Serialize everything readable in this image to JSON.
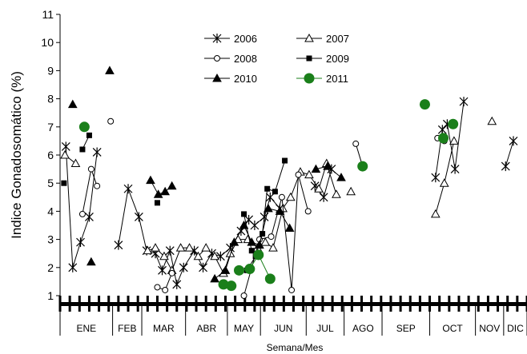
{
  "chart_data": {
    "type": "line",
    "xlabel": "Semana/Mes",
    "ylabel": "Indice Gonadosomático (%)",
    "ylim": [
      1,
      11
    ],
    "yticks": [
      1,
      2,
      3,
      4,
      5,
      6,
      7,
      8,
      9,
      10,
      11
    ],
    "x_range": [
      0,
      48
    ],
    "months": [
      "ENE",
      "FEB",
      "MAR",
      "ABR",
      "MAY",
      "JUN",
      "JUL",
      "AGO",
      "SEP",
      "OCT",
      "NOV",
      "DIC"
    ],
    "month_boundaries": [
      0,
      5.4,
      8.4,
      12.9,
      17.2,
      20.6,
      25.3,
      29.2,
      33.1,
      38.0,
      42.7,
      45.6,
      48
    ],
    "legend_position": "top-center",
    "grid": false,
    "series": [
      {
        "name": "2006",
        "marker": "star",
        "color": "#000000",
        "segments": [
          [
            [
              0.6,
              6.3
            ],
            [
              1.3,
              2.0
            ],
            [
              2.1,
              2.9
            ],
            [
              3.0,
              3.8
            ],
            [
              3.8,
              6.1
            ]
          ],
          [
            [
              6.0,
              2.8
            ],
            [
              7.0,
              4.8
            ],
            [
              8.1,
              3.8
            ],
            [
              8.9,
              2.6
            ],
            [
              9.8,
              2.5
            ],
            [
              10.5,
              1.9
            ],
            [
              11.3,
              2.6
            ],
            [
              12.0,
              1.4
            ],
            [
              12.7,
              2.0
            ],
            [
              13.8,
              2.6
            ],
            [
              14.7,
              2.0
            ],
            [
              15.6,
              2.5
            ],
            [
              16.5,
              2.4
            ],
            [
              17.5,
              2.7
            ],
            [
              18.6,
              3.3
            ],
            [
              19.4,
              3.7
            ],
            [
              20.0,
              3.5
            ],
            [
              21.0,
              3.8
            ],
            [
              21.6,
              4.5
            ],
            [
              22.6,
              4.1
            ]
          ],
          [
            [
              26.2,
              4.9
            ],
            [
              27.1,
              4.5
            ],
            [
              27.9,
              5.5
            ]
          ],
          [
            [
              38.6,
              5.2
            ],
            [
              39.3,
              6.9
            ],
            [
              39.8,
              7.1
            ],
            [
              40.6,
              5.5
            ],
            [
              41.5,
              7.9
            ]
          ],
          [
            [
              45.8,
              5.6
            ],
            [
              46.6,
              6.5
            ]
          ]
        ]
      },
      {
        "name": "2007",
        "marker": "open-triangle",
        "color": "#000000",
        "segments": [
          [
            [
              0.5,
              6.0
            ],
            [
              1.6,
              5.7
            ]
          ],
          [
            [
              9.0,
              2.6
            ],
            [
              9.8,
              2.7
            ],
            [
              10.7,
              2.4
            ],
            [
              11.5,
              1.9
            ],
            [
              12.4,
              2.7
            ],
            [
              13.3,
              2.7
            ],
            [
              14.2,
              2.4
            ],
            [
              15.0,
              2.7
            ],
            [
              15.9,
              2.4
            ],
            [
              16.8,
              1.8
            ],
            [
              17.5,
              2.5
            ],
            [
              18.3,
              3.0
            ],
            [
              19.3,
              3.0
            ],
            [
              20.3,
              2.7
            ],
            [
              21.1,
              2.9
            ],
            [
              21.9,
              2.7
            ],
            [
              22.9,
              4.1
            ],
            [
              23.7,
              4.5
            ],
            [
              24.7,
              5.4
            ],
            [
              25.6,
              5.3
            ],
            [
              26.6,
              4.8
            ],
            [
              27.4,
              5.7
            ],
            [
              28.4,
              4.6
            ]
          ],
          [
            [
              29.9,
              4.7
            ]
          ],
          [
            [
              38.6,
              3.9
            ],
            [
              39.5,
              5.0
            ],
            [
              40.5,
              6.5
            ]
          ],
          [
            [
              44.4,
              7.2
            ]
          ]
        ]
      },
      {
        "name": "2008",
        "marker": "open-circle",
        "color": "#000000",
        "segments": [
          [
            [
              2.3,
              3.9
            ],
            [
              3.2,
              5.5
            ],
            [
              3.8,
              4.9
            ]
          ],
          [
            [
              5.2,
              7.2
            ]
          ],
          [
            [
              10.0,
              1.3
            ],
            [
              10.8,
              1.2
            ],
            [
              11.5,
              1.8
            ]
          ],
          [
            [
              18.9,
              1.0
            ],
            [
              20.5,
              3.0
            ],
            [
              21.7,
              3.1
            ],
            [
              22.8,
              4.5
            ],
            [
              23.8,
              1.2
            ],
            [
              24.5,
              5.3
            ],
            [
              25.5,
              4.0
            ]
          ],
          [
            [
              30.4,
              6.4
            ],
            [
              31.1,
              5.6
            ]
          ],
          [
            [
              38.8,
              6.6
            ],
            [
              39.5,
              6.5
            ]
          ]
        ]
      },
      {
        "name": "2009",
        "marker": "filled-square",
        "color": "#000000",
        "segments": [
          [
            [
              0.4,
              5.0
            ]
          ],
          [
            [
              2.3,
              6.2
            ],
            [
              3.0,
              6.7
            ]
          ],
          [
            [
              10.0,
              4.3
            ]
          ],
          [
            [
              19.2,
              1.9
            ],
            [
              20.1,
              2.4
            ],
            [
              20.8,
              3.2
            ],
            [
              21.3,
              4.8
            ],
            [
              22.1,
              4.7
            ],
            [
              23.1,
              5.8
            ]
          ],
          [
            [
              18.9,
              3.9
            ],
            [
              19.7,
              2.6
            ]
          ]
        ]
      },
      {
        "name": "2010",
        "marker": "filled-triangle",
        "color": "#000000",
        "segments": [
          [
            [
              1.3,
              7.8
            ]
          ],
          [
            [
              3.2,
              2.2
            ]
          ],
          [
            [
              5.1,
              9.0
            ]
          ],
          [
            [
              9.3,
              5.1
            ],
            [
              10.1,
              4.6
            ],
            [
              10.8,
              4.7
            ],
            [
              11.5,
              4.9
            ]
          ],
          [
            [
              15.9,
              1.6
            ],
            [
              17.0,
              1.9
            ],
            [
              17.9,
              2.9
            ],
            [
              18.9,
              3.5
            ],
            [
              19.7,
              2.9
            ],
            [
              20.5,
              2.8
            ],
            [
              21.4,
              4.1
            ],
            [
              22.6,
              4.0
            ],
            [
              23.6,
              3.4
            ]
          ],
          [
            [
              26.3,
              5.5
            ],
            [
              27.5,
              5.6
            ],
            [
              28.9,
              5.2
            ]
          ]
        ]
      },
      {
        "name": "2011",
        "marker": "big-filled-circle",
        "color": "#1a7f1a",
        "segments": [
          [
            [
              2.5,
              7.0
            ]
          ],
          [
            [
              16.8,
              1.4
            ],
            [
              17.6,
              1.35
            ]
          ],
          [
            [
              18.4,
              1.9
            ],
            [
              19.5,
              1.95
            ],
            [
              20.4,
              2.45
            ],
            [
              21.6,
              1.6
            ]
          ],
          [
            [
              31.1,
              5.6
            ]
          ],
          [
            [
              37.5,
              7.8
            ]
          ],
          [
            [
              39.4,
              6.6
            ]
          ],
          [
            [
              40.4,
              7.1
            ]
          ]
        ]
      }
    ]
  }
}
